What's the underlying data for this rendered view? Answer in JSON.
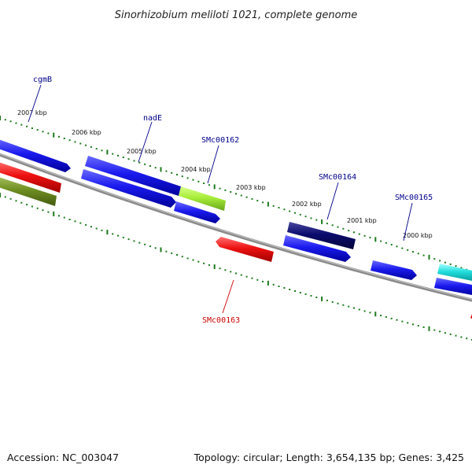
{
  "title": "Sinorhizobium meliloti 1021, complete genome",
  "footer": {
    "accession": "Accession: NC_003047",
    "summary": "Topology: circular; Length: 3,654,135 bp; Genes: 3,425"
  },
  "ticks": [
    "2007 kbp",
    "2006 kbp",
    "2005 kbp",
    "2004 kbp",
    "2003 kbp",
    "2002 kbp",
    "2001 kbp",
    "2000 kbp"
  ],
  "gene_labels": {
    "cgmB": "cgmB",
    "nadE": "nadE",
    "SMc00162": "SMc00162",
    "SMc00164": "SMc00164",
    "SMc00165": "SMc00165",
    "SMc00163": "SMc00163"
  },
  "colors": {
    "forward_strand": "#1a1aee",
    "reverse_strand": "#ee1111",
    "olive": "#6f8f22",
    "lime": "#a8ee3a",
    "navy": "#0b0b6e",
    "cyan": "#22dddd",
    "tick_green": "#1b7a1b",
    "label_blue": "#00008b",
    "label_red": "#cc0000",
    "backbone": "#8a8a8a"
  }
}
